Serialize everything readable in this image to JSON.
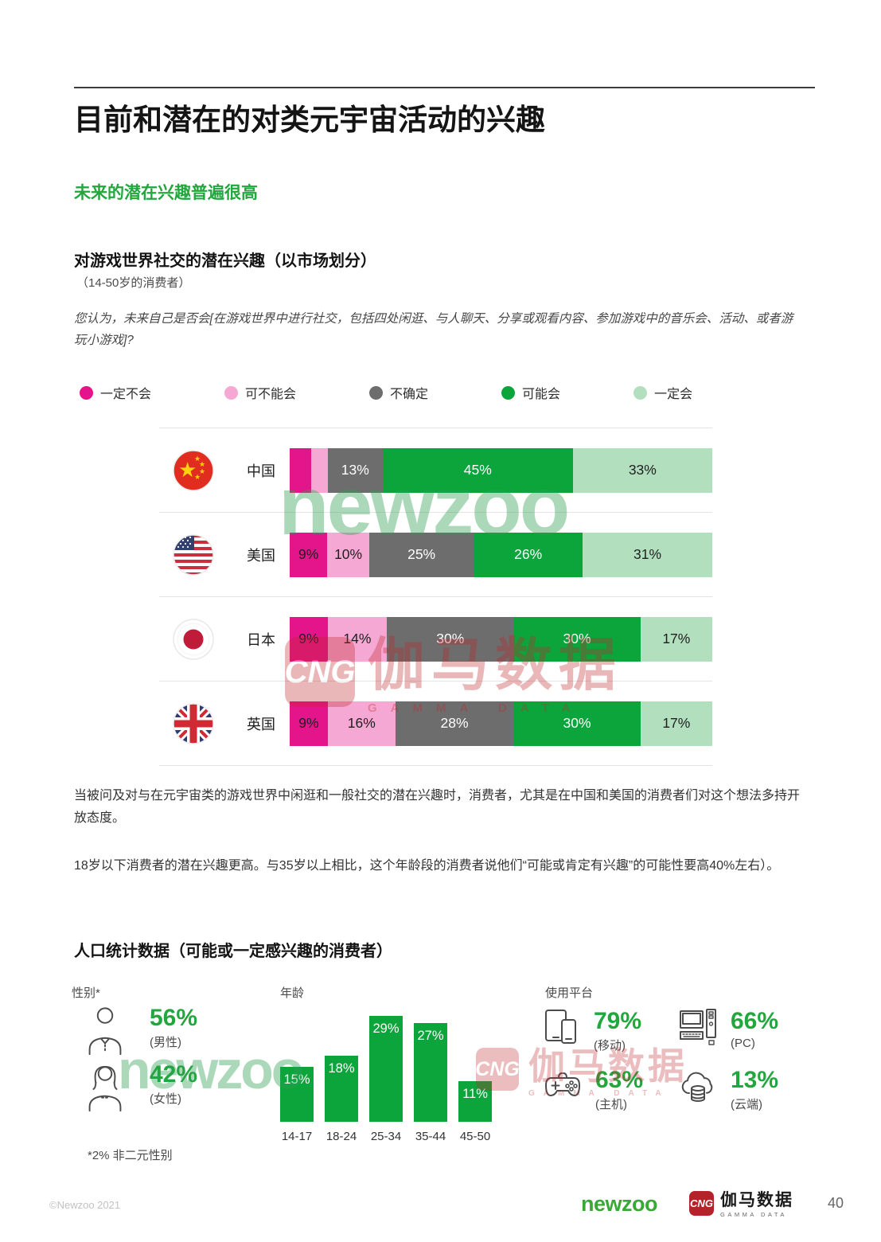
{
  "header": {
    "title": "目前和潜在的对类元宇宙活动的兴趣",
    "subtitle": "未来的潜在兴趣普遍很高"
  },
  "survey": {
    "heading": "对游戏世界社交的潜在兴趣（以市场划分）",
    "scope": "（14-50岁的消费者）",
    "question": "您认为，未来自己是否会[在游戏世界中进行社交，包括四处闲逛、与人聊天、分享或观看内容、参加游戏中的音乐会、活动、或者游玩小游戏]?",
    "legend": [
      {
        "label": "一定不会",
        "color": "#e4148b"
      },
      {
        "label": "可不能会",
        "color": "#f5a8d3"
      },
      {
        "label": "不确定",
        "color": "#6d6d6d"
      },
      {
        "label": "可能会",
        "color": "#0ba53c"
      },
      {
        "label": "一定会",
        "color": "#b2e0bf"
      }
    ],
    "markets": [
      {
        "name": "中国",
        "flag": "cn",
        "segments": [
          {
            "value": 5,
            "label": ""
          },
          {
            "value": 4,
            "label": ""
          },
          {
            "value": 13,
            "label": "13%"
          },
          {
            "value": 45,
            "label": "45%"
          },
          {
            "value": 33,
            "label": "33%"
          }
        ]
      },
      {
        "name": "美国",
        "flag": "us",
        "segments": [
          {
            "value": 9,
            "label": "9%"
          },
          {
            "value": 10,
            "label": "10%"
          },
          {
            "value": 25,
            "label": "25%"
          },
          {
            "value": 26,
            "label": "26%"
          },
          {
            "value": 31,
            "label": "31%"
          }
        ]
      },
      {
        "name": "日本",
        "flag": "jp",
        "segments": [
          {
            "value": 9,
            "label": "9%"
          },
          {
            "value": 14,
            "label": "14%"
          },
          {
            "value": 30,
            "label": "30%"
          },
          {
            "value": 30,
            "label": "30%"
          },
          {
            "value": 17,
            "label": "17%"
          }
        ]
      },
      {
        "name": "英国",
        "flag": "uk",
        "segments": [
          {
            "value": 9,
            "label": "9%"
          },
          {
            "value": 16,
            "label": "16%"
          },
          {
            "value": 28,
            "label": "28%"
          },
          {
            "value": 30,
            "label": "30%"
          },
          {
            "value": 17,
            "label": "17%"
          }
        ]
      }
    ]
  },
  "commentary": {
    "p1": "当被问及对与在元宇宙类的游戏世界中闲逛和一般社交的潜在兴趣时，消费者，尤其是在中国和美国的消费者们对这个想法多持开放态度。",
    "p2": "18岁以下消费者的潜在兴趣更高。与35岁以上相比，这个年龄段的消费者说他们“可能或肯定有兴趣”的可能性要高40%左右）。"
  },
  "demographics": {
    "heading": "人口统计数据（可能或一定感兴趣的消费者）",
    "gender": {
      "label": "性别*",
      "items": [
        {
          "value": "56%",
          "caption": "(男性)"
        },
        {
          "value": "42%",
          "caption": "(女性)"
        }
      ],
      "footnote": "*2% 非二元性别"
    },
    "age": {
      "label": "年龄",
      "categories": [
        "14-17",
        "18-24",
        "25-34",
        "35-44",
        "45-50"
      ],
      "values": [
        15,
        18,
        29,
        27,
        11
      ]
    },
    "platforms": {
      "label": "使用平台",
      "items": [
        {
          "value": "79%",
          "caption": "(移动)"
        },
        {
          "value": "66%",
          "caption": "(PC)"
        },
        {
          "value": "63%",
          "caption": "(主机)"
        },
        {
          "value": "13%",
          "caption": "(云端)"
        }
      ]
    }
  },
  "watermarks": {
    "newzoo": "newzoo",
    "cng": "CNG",
    "gamma_cn": "伽马数据",
    "gamma_en": "GAMMA DATA"
  },
  "footer": {
    "copyright": "©Newzoo 2021",
    "newzoo_logo": "newzoo",
    "cng": "CNG",
    "gamma_cn": "伽马数据",
    "gamma_en": "GAMMA DATA",
    "page_number": "40"
  },
  "colors": {
    "accent_green": "#21a73d",
    "chart_green": "#0ba53c",
    "magenta": "#e4148b",
    "pink": "#f5a8d3",
    "gray": "#6d6d6d",
    "light_green": "#b2e0bf",
    "watermark_green": "#2fa053",
    "watermark_red": "#c0272d",
    "logo_green": "#39a935",
    "logo_red": "#b5232a"
  },
  "chart_data": [
    {
      "type": "bar",
      "stacked": true,
      "orientation": "horizontal",
      "title": "对游戏世界社交的潜在兴趣（以市场划分）",
      "subtitle": "（14-50岁的消费者）",
      "categories": [
        "中国",
        "美国",
        "日本",
        "英国"
      ],
      "series": [
        {
          "name": "一定不会",
          "color": "#e4148b",
          "values": [
            5,
            9,
            9,
            9
          ]
        },
        {
          "name": "可不能会",
          "color": "#f5a8d3",
          "values": [
            4,
            10,
            14,
            16
          ]
        },
        {
          "name": "不确定",
          "color": "#6d6d6d",
          "values": [
            13,
            25,
            30,
            28
          ]
        },
        {
          "name": "可能会",
          "color": "#0ba53c",
          "values": [
            45,
            26,
            30,
            30
          ]
        },
        {
          "name": "一定会",
          "color": "#b2e0bf",
          "values": [
            33,
            31,
            17,
            17
          ]
        }
      ],
      "unit": "%",
      "xlim": [
        0,
        100
      ],
      "legend_position": "top",
      "grid": false
    },
    {
      "type": "bar",
      "title": "年龄",
      "categories": [
        "14-17",
        "18-24",
        "25-34",
        "35-44",
        "45-50"
      ],
      "values": [
        15,
        18,
        29,
        27,
        11
      ],
      "unit": "%",
      "grid": false
    },
    {
      "type": "bar",
      "title": "性别*",
      "categories": [
        "男性",
        "女性"
      ],
      "values": [
        56,
        42
      ],
      "unit": "%",
      "annotation": "*2% 非二元性别"
    },
    {
      "type": "bar",
      "title": "使用平台",
      "categories": [
        "移动",
        "PC",
        "主机",
        "云端"
      ],
      "values": [
        79,
        66,
        63,
        13
      ],
      "unit": "%"
    }
  ]
}
